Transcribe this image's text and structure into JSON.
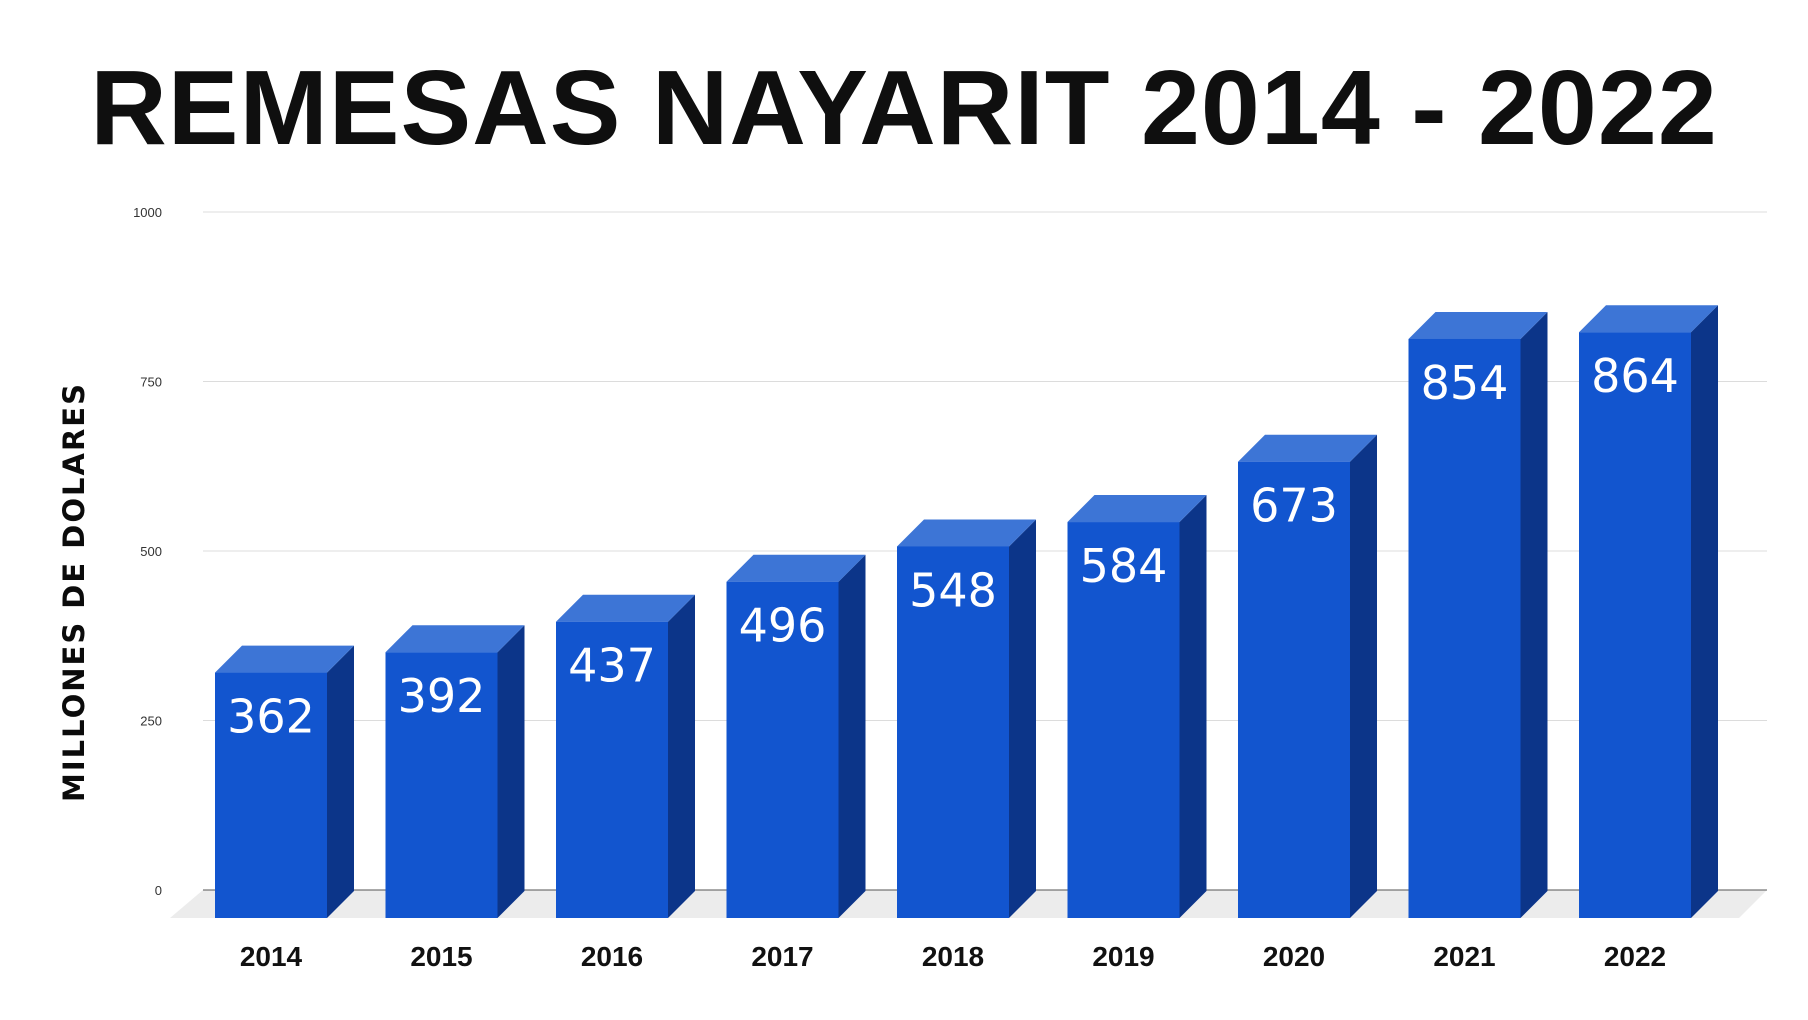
{
  "chart_data": {
    "type": "bar",
    "title": "REMESAS NAYARIT 2014 - 2022",
    "ylabel": "MILLONES DE DOLARES",
    "xlabel": "",
    "categories": [
      "2014",
      "2015",
      "2016",
      "2017",
      "2018",
      "2019",
      "2020",
      "2021",
      "2022"
    ],
    "values": [
      362,
      392,
      437,
      496,
      548,
      584,
      673,
      854,
      864
    ],
    "data_labels": [
      "362",
      "392",
      "437",
      "496",
      "548",
      "584",
      "673",
      "854",
      "864"
    ],
    "ylim": [
      0,
      1000
    ],
    "yticks": [
      0,
      250,
      500,
      750,
      1000
    ],
    "ytick_labels": [
      "0",
      "250",
      "500",
      "750",
      "1000"
    ],
    "grid": true,
    "legend": "none",
    "style": "3d-bar"
  },
  "colors": {
    "bar_front": "#1255cf",
    "bar_top": "#3d75d6",
    "bar_side": "#0c3589",
    "floor": "#ececec",
    "gridline": "#dcdcdc"
  }
}
